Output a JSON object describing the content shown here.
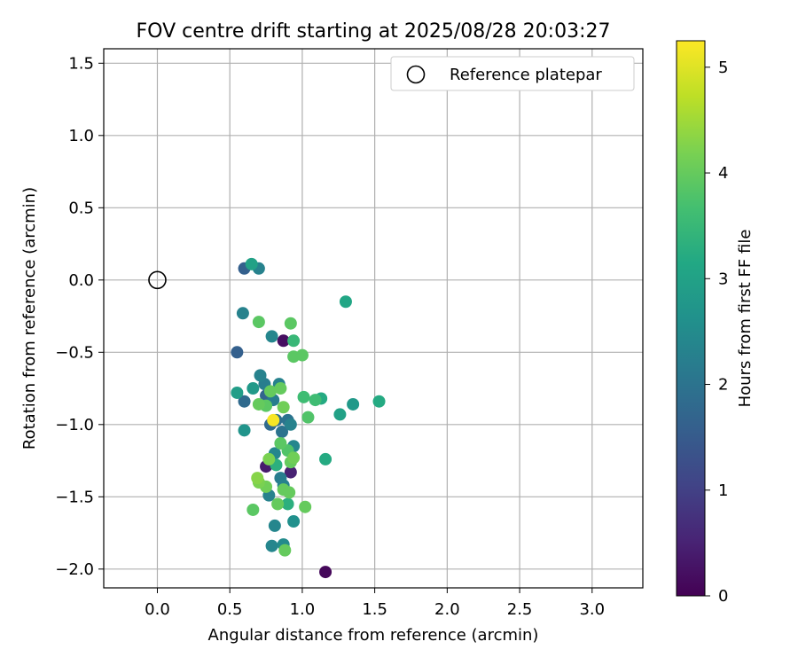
{
  "chart_data": {
    "type": "scatter",
    "title": "FOV centre drift starting at 2025/08/28 20:03:27",
    "xlabel": "Angular distance from reference (arcmin)",
    "ylabel": "Rotation from reference (arcmin)",
    "xlim": [
      -0.37,
      3.35
    ],
    "ylim": [
      -2.13,
      1.6
    ],
    "x_ticks": [
      0.0,
      0.5,
      1.0,
      1.5,
      2.0,
      2.5,
      3.0
    ],
    "x_tick_labels": [
      "0.0",
      "0.5",
      "1.0",
      "1.5",
      "2.0",
      "2.5",
      "3.0"
    ],
    "y_ticks": [
      1.5,
      1.0,
      0.5,
      0.0,
      -0.5,
      -1.0,
      -1.5,
      -2.0
    ],
    "y_tick_labels": [
      "1.5",
      "1.0",
      "0.5",
      "0.0",
      "−0.5",
      "−1.0",
      "−1.5",
      "−2.0"
    ],
    "grid": true,
    "legend": {
      "placement": "top-right",
      "entries": [
        "Reference platepar"
      ]
    },
    "reference_point": {
      "x": 0.0,
      "y": 0.0,
      "label": "Reference platepar"
    },
    "colorbar": {
      "label": "Hours from first FF file",
      "range": [
        0,
        5.25
      ],
      "ticks": [
        0,
        1,
        2,
        3,
        4,
        5
      ],
      "tick_labels": [
        "0",
        "1",
        "2",
        "3",
        "4",
        "5"
      ],
      "colormap": "viridis"
    },
    "points": [
      {
        "x": 1.16,
        "y": -2.02,
        "h": 0.1
      },
      {
        "x": 0.87,
        "y": -0.42,
        "h": 0.2
      },
      {
        "x": 0.75,
        "y": -1.29,
        "h": 0.4
      },
      {
        "x": 0.92,
        "y": -1.33,
        "h": 0.5
      },
      {
        "x": 0.6,
        "y": 0.08,
        "h": 1.6
      },
      {
        "x": 0.55,
        "y": -0.5,
        "h": 1.6
      },
      {
        "x": 0.6,
        "y": -0.84,
        "h": 1.8
      },
      {
        "x": 0.75,
        "y": -0.8,
        "h": 1.7
      },
      {
        "x": 0.82,
        "y": -0.97,
        "h": 1.9
      },
      {
        "x": 0.9,
        "y": -0.97,
        "h": 2.0
      },
      {
        "x": 0.78,
        "y": -1.0,
        "h": 1.8
      },
      {
        "x": 0.86,
        "y": -1.05,
        "h": 2.0
      },
      {
        "x": 0.7,
        "y": 0.08,
        "h": 2.3
      },
      {
        "x": 0.59,
        "y": -0.23,
        "h": 2.3
      },
      {
        "x": 0.79,
        "y": -0.39,
        "h": 2.4
      },
      {
        "x": 0.71,
        "y": -0.66,
        "h": 2.3
      },
      {
        "x": 0.74,
        "y": -0.72,
        "h": 2.2
      },
      {
        "x": 0.84,
        "y": -0.72,
        "h": 2.3
      },
      {
        "x": 0.8,
        "y": -0.83,
        "h": 2.2
      },
      {
        "x": 0.92,
        "y": -1.0,
        "h": 2.3
      },
      {
        "x": 0.94,
        "y": -1.15,
        "h": 2.4
      },
      {
        "x": 0.81,
        "y": -1.2,
        "h": 2.4
      },
      {
        "x": 0.85,
        "y": -1.37,
        "h": 2.2
      },
      {
        "x": 0.87,
        "y": -1.42,
        "h": 2.3
      },
      {
        "x": 0.77,
        "y": -1.49,
        "h": 2.3
      },
      {
        "x": 0.81,
        "y": -1.7,
        "h": 2.4
      },
      {
        "x": 0.79,
        "y": -1.84,
        "h": 2.4
      },
      {
        "x": 0.87,
        "y": -1.83,
        "h": 2.5
      },
      {
        "x": 0.94,
        "y": -1.67,
        "h": 2.6
      },
      {
        "x": 0.6,
        "y": -1.04,
        "h": 2.7
      },
      {
        "x": 0.55,
        "y": -0.78,
        "h": 2.9
      },
      {
        "x": 0.65,
        "y": 0.11,
        "h": 3.0
      },
      {
        "x": 1.3,
        "y": -0.15,
        "h": 3.1
      },
      {
        "x": 0.66,
        "y": -0.75,
        "h": 2.8
      },
      {
        "x": 1.35,
        "y": -0.86,
        "h": 2.8
      },
      {
        "x": 1.26,
        "y": -0.93,
        "h": 3.0
      },
      {
        "x": 1.53,
        "y": -0.84,
        "h": 3.2
      },
      {
        "x": 1.16,
        "y": -1.24,
        "h": 3.2
      },
      {
        "x": 1.13,
        "y": -0.82,
        "h": 3.2
      },
      {
        "x": 0.9,
        "y": -1.55,
        "h": 3.3
      },
      {
        "x": 0.82,
        "y": -1.28,
        "h": 3.3
      },
      {
        "x": 0.7,
        "y": -0.29,
        "h": 3.9
      },
      {
        "x": 0.92,
        "y": -0.3,
        "h": 3.9
      },
      {
        "x": 0.94,
        "y": -0.42,
        "h": 3.5
      },
      {
        "x": 0.94,
        "y": -0.53,
        "h": 3.9
      },
      {
        "x": 1.0,
        "y": -0.52,
        "h": 3.9
      },
      {
        "x": 0.78,
        "y": -0.77,
        "h": 4.0
      },
      {
        "x": 0.85,
        "y": -0.75,
        "h": 4.0
      },
      {
        "x": 1.01,
        "y": -0.81,
        "h": 3.6
      },
      {
        "x": 1.09,
        "y": -0.83,
        "h": 3.6
      },
      {
        "x": 0.7,
        "y": -0.86,
        "h": 4.0
      },
      {
        "x": 0.75,
        "y": -0.87,
        "h": 3.9
      },
      {
        "x": 0.87,
        "y": -0.88,
        "h": 4.1
      },
      {
        "x": 1.04,
        "y": -0.95,
        "h": 3.8
      },
      {
        "x": 0.85,
        "y": -1.13,
        "h": 3.9
      },
      {
        "x": 0.9,
        "y": -1.18,
        "h": 3.8
      },
      {
        "x": 0.94,
        "y": -1.23,
        "h": 4.1
      },
      {
        "x": 0.92,
        "y": -1.26,
        "h": 4.0
      },
      {
        "x": 0.77,
        "y": -1.24,
        "h": 4.2
      },
      {
        "x": 0.69,
        "y": -1.37,
        "h": 4.3
      },
      {
        "x": 0.7,
        "y": -1.4,
        "h": 4.2
      },
      {
        "x": 0.75,
        "y": -1.43,
        "h": 4.1
      },
      {
        "x": 0.87,
        "y": -1.45,
        "h": 4.0
      },
      {
        "x": 0.91,
        "y": -1.47,
        "h": 4.0
      },
      {
        "x": 0.83,
        "y": -1.55,
        "h": 4.0
      },
      {
        "x": 1.02,
        "y": -1.57,
        "h": 4.0
      },
      {
        "x": 0.66,
        "y": -1.59,
        "h": 3.9
      },
      {
        "x": 0.88,
        "y": -1.87,
        "h": 4.0
      },
      {
        "x": 0.8,
        "y": -0.97,
        "h": 5.2
      }
    ]
  }
}
